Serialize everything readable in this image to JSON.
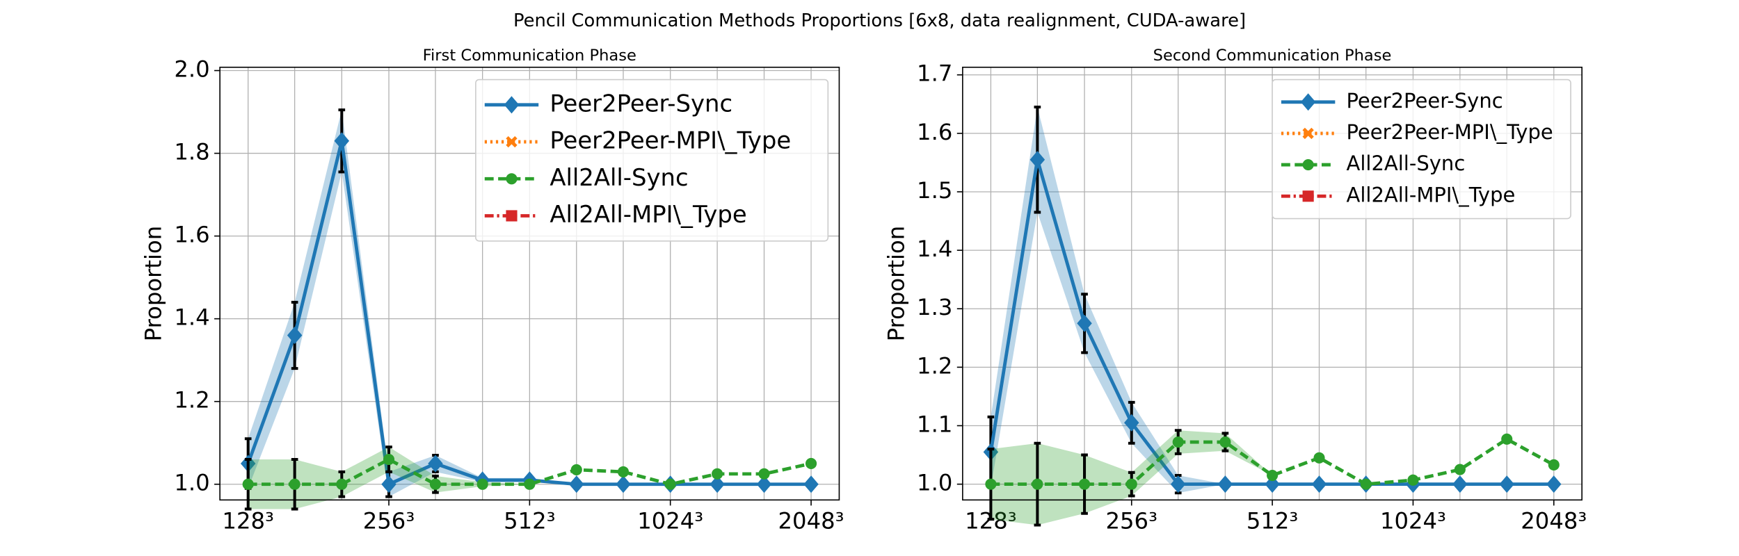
{
  "title": "Pencil Communication Methods Proportions [6x8, data realignment, CUDA-aware]",
  "chart_data": [
    {
      "type": "line",
      "title": "First Communication Phase",
      "ylabel": "Proportion",
      "xscale": "log",
      "grid": true,
      "legend": "upper right",
      "x": [
        128,
        161,
        203,
        256,
        322,
        406,
        512,
        645,
        812,
        1024,
        1290,
        1625,
        2048
      ],
      "xlim": [
        111.4,
        2352
      ],
      "xticks": [
        {
          "value": 128,
          "label": "128³"
        },
        {
          "value": 256,
          "label": "256³"
        },
        {
          "value": 512,
          "label": "512³"
        },
        {
          "value": 1024,
          "label": "1024³"
        },
        {
          "value": 2048,
          "label": "2048³"
        }
      ],
      "ylim": [
        0.962,
        2.008
      ],
      "yticks": [
        {
          "value": 1.0,
          "label": "1.0"
        },
        {
          "value": 1.2,
          "label": "1.2"
        },
        {
          "value": 1.4,
          "label": "1.4"
        },
        {
          "value": 1.6,
          "label": "1.6"
        },
        {
          "value": 1.8,
          "label": "1.8"
        },
        {
          "value": 2.0,
          "label": "2.0"
        }
      ],
      "series": [
        {
          "name": "Peer2Peer-Sync",
          "color": "#1f77b4",
          "linestyle": "solid",
          "marker": "diamond",
          "values": [
            1.05,
            1.36,
            1.83,
            1.0,
            1.05,
            1.01,
            1.01,
            1.0,
            1.0,
            1.0,
            1.0,
            1.0,
            1.0
          ],
          "errors": [
            0.06,
            0.08,
            0.075,
            0.03,
            0.02,
            0.005,
            0.005,
            0,
            0,
            0,
            0,
            0,
            0
          ]
        },
        {
          "name": "Peer2Peer-MPI\\_Type",
          "color": "#ff7f0e",
          "linestyle": "dotted",
          "marker": "x",
          "values": [
            null,
            null,
            null,
            null,
            null,
            null,
            null,
            null,
            null,
            null,
            null,
            null,
            null
          ],
          "errors": [
            null,
            null,
            null,
            null,
            null,
            null,
            null,
            null,
            null,
            null,
            null,
            null,
            null
          ]
        },
        {
          "name": "All2All-Sync",
          "color": "#2ca02c",
          "linestyle": "dashed",
          "marker": "circle",
          "values": [
            1.0,
            1.0,
            1.0,
            1.06,
            1.0,
            1.0,
            1.0,
            1.035,
            1.03,
            1.0,
            1.025,
            1.025,
            1.05
          ],
          "errors": [
            0.06,
            0.06,
            0.03,
            0.03,
            0.02,
            0.005,
            0,
            0,
            0,
            0,
            0,
            0,
            0
          ]
        },
        {
          "name": "All2All-MPI\\_Type",
          "color": "#d62728",
          "linestyle": "dashdot",
          "marker": "square",
          "values": [
            null,
            null,
            null,
            null,
            null,
            null,
            null,
            null,
            null,
            null,
            null,
            null,
            null
          ],
          "errors": [
            null,
            null,
            null,
            null,
            null,
            null,
            null,
            null,
            null,
            null,
            null,
            null,
            null
          ]
        }
      ]
    },
    {
      "type": "line",
      "title": "Second Communication Phase",
      "ylabel": "Proportion",
      "xscale": "log",
      "grid": true,
      "legend": "upper right",
      "x": [
        128,
        161,
        203,
        256,
        322,
        406,
        512,
        645,
        812,
        1024,
        1290,
        1625,
        2048
      ],
      "xlim": [
        111.4,
        2352
      ],
      "xticks": [
        {
          "value": 128,
          "label": "128³"
        },
        {
          "value": 256,
          "label": "256³"
        },
        {
          "value": 512,
          "label": "512³"
        },
        {
          "value": 1024,
          "label": "1024³"
        },
        {
          "value": 2048,
          "label": "2048³"
        }
      ],
      "ylim": [
        0.973,
        1.713
      ],
      "yticks": [
        {
          "value": 1.0,
          "label": "1.0"
        },
        {
          "value": 1.1,
          "label": "1.1"
        },
        {
          "value": 1.2,
          "label": "1.2"
        },
        {
          "value": 1.3,
          "label": "1.3"
        },
        {
          "value": 1.4,
          "label": "1.4"
        },
        {
          "value": 1.5,
          "label": "1.5"
        },
        {
          "value": 1.6,
          "label": "1.6"
        },
        {
          "value": 1.7,
          "label": "1.7"
        }
      ],
      "series": [
        {
          "name": "Peer2Peer-Sync",
          "color": "#1f77b4",
          "linestyle": "solid",
          "marker": "diamond",
          "values": [
            1.055,
            1.555,
            1.275,
            1.105,
            1.0,
            1.0,
            1.0,
            1.0,
            1.0,
            1.0,
            1.0,
            1.0,
            1.0
          ],
          "errors": [
            0.06,
            0.09,
            0.05,
            0.035,
            0.015,
            0,
            0,
            0,
            0,
            0,
            0,
            0,
            0
          ]
        },
        {
          "name": "Peer2Peer-MPI\\_Type",
          "color": "#ff7f0e",
          "linestyle": "dotted",
          "marker": "x",
          "values": [
            null,
            null,
            null,
            null,
            null,
            null,
            null,
            null,
            null,
            null,
            null,
            null,
            null
          ],
          "errors": [
            null,
            null,
            null,
            null,
            null,
            null,
            null,
            null,
            null,
            null,
            null,
            null,
            null
          ]
        },
        {
          "name": "All2All-Sync",
          "color": "#2ca02c",
          "linestyle": "dashed",
          "marker": "circle",
          "values": [
            1.0,
            1.0,
            1.0,
            1.0,
            1.072,
            1.072,
            1.015,
            1.045,
            1.0,
            1.007,
            1.025,
            1.077,
            1.033
          ],
          "errors": [
            0.06,
            0.07,
            0.05,
            0.02,
            0.02,
            0.015,
            0,
            0,
            0,
            0,
            0,
            0,
            0
          ]
        },
        {
          "name": "All2All-MPI\\_Type",
          "color": "#d62728",
          "linestyle": "dashdot",
          "marker": "square",
          "values": [
            null,
            null,
            null,
            null,
            null,
            null,
            null,
            null,
            null,
            null,
            null,
            null,
            null
          ],
          "errors": [
            null,
            null,
            null,
            null,
            null,
            null,
            null,
            null,
            null,
            null,
            null,
            null,
            null
          ]
        }
      ]
    }
  ]
}
